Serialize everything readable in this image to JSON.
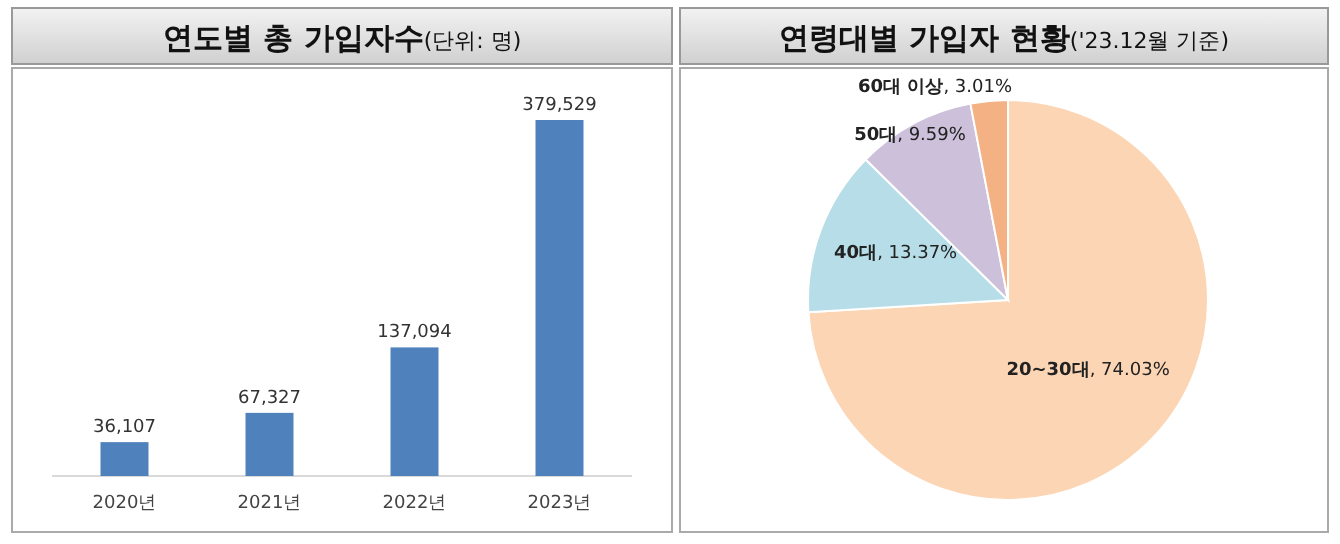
{
  "chart_data": [
    {
      "type": "bar",
      "title": "연도별 총 가입자수",
      "subtitle": "(단위: 명)",
      "categories": [
        "2020년",
        "2021년",
        "2022년",
        "2023년"
      ],
      "values": [
        36107,
        67327,
        137094,
        379529
      ],
      "value_labels": [
        "36,107",
        "67,327",
        "137,094",
        "379,529"
      ],
      "color": "#4f81bd"
    },
    {
      "type": "pie",
      "title": "연령대별 가입자 현황",
      "subtitle": "('23.12월 기준)",
      "categories": [
        "20~30대",
        "40대",
        "50대",
        "60대 이상"
      ],
      "values": [
        74.03,
        13.37,
        9.59,
        3.01
      ],
      "value_labels": [
        ", 74.03%",
        ", 13.37%",
        ", 9.59%",
        ", 3.01%"
      ],
      "colors": [
        "#fcd5b4",
        "#b7dee8",
        "#ccc0da",
        "#f4b183"
      ]
    }
  ]
}
